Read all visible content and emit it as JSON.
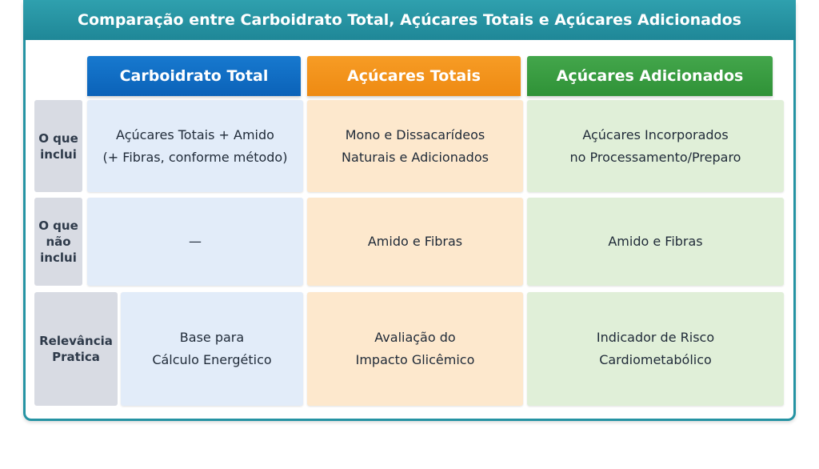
{
  "title": "Comparação entre Carboidrato Total, Açúcares Totais e Açúcares Adicionados",
  "columns": [
    "Carboidrato Total",
    "Açúcares Totais",
    "Açúcares Adicionados"
  ],
  "rows": [
    {
      "label": [
        "O que",
        "inclui"
      ],
      "cells": [
        [
          "Açúcares Totais + Amido",
          "(+ Fibras, conforme método)"
        ],
        [
          "Mono e Dissacarídeos",
          "Naturais e Adicionados"
        ],
        [
          "Açúcares Incorporados",
          "no Processamento/Preparo"
        ]
      ]
    },
    {
      "label": [
        "O que",
        "não",
        "inclui"
      ],
      "cells": [
        [
          "—"
        ],
        [
          "Amido e Fibras"
        ],
        [
          "Amido e Fibras"
        ]
      ]
    },
    {
      "label": [
        "Relevância",
        "Pratica"
      ],
      "cells": [
        [
          "Base para",
          "Cálculo Energético"
        ],
        [
          "Avaliação do",
          "Impacto Glicêmico"
        ],
        [
          "Indicador de Risco",
          "Cardiometabólico"
        ]
      ]
    }
  ],
  "colors": {
    "title_bar": "#2593a3",
    "carboidrato_total": "#0b6ac4",
    "acucares_totais": "#f29316",
    "acucares_adicionados": "#389c40"
  }
}
